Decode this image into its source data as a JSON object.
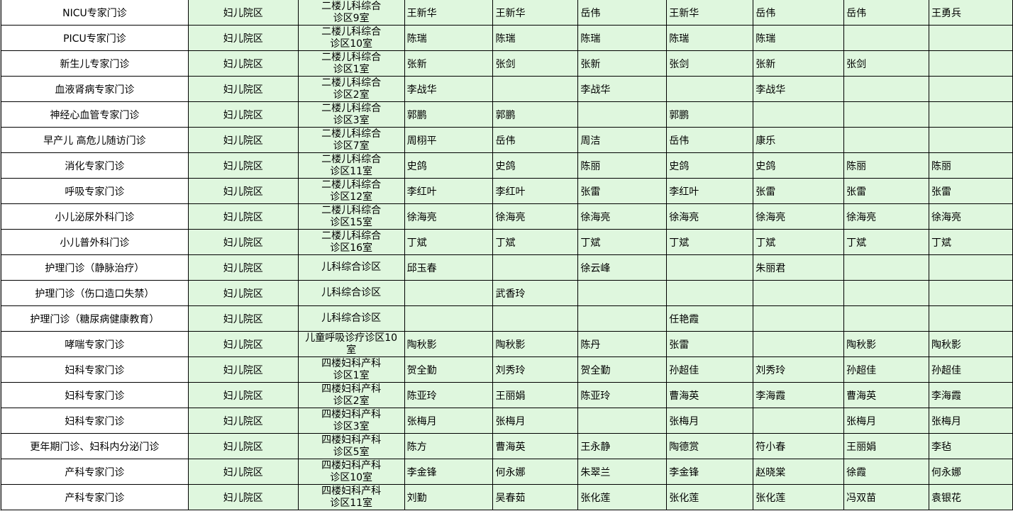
{
  "colors": {
    "cell_bg": "#dff7de",
    "first_col_bg": "#ffffff",
    "grid": "#000000"
  },
  "rows": [
    {
      "service": "NICU专家门诊",
      "campus": "妇儿院区",
      "room": "二楼儿科综合\n诊区9室",
      "doctors": [
        "王新华",
        "王新华",
        "岳伟",
        "王新华",
        "岳伟",
        "岳伟",
        "王勇兵"
      ]
    },
    {
      "service": "PICU专家门诊",
      "campus": "妇儿院区",
      "room": "二楼儿科综合\n诊区10室",
      "doctors": [
        "陈瑞",
        "陈瑞",
        "陈瑞",
        "陈瑞",
        "陈瑞",
        "",
        ""
      ]
    },
    {
      "service": "新生儿专家门诊",
      "campus": "妇儿院区",
      "room": "二楼儿科综合\n诊区1室",
      "doctors": [
        "张新",
        "张剑",
        "张新",
        "张剑",
        "张新",
        "张剑",
        ""
      ]
    },
    {
      "service": "血液肾病专家门诊",
      "campus": "妇儿院区",
      "room": "二楼儿科综合\n诊区2室",
      "doctors": [
        "李战华",
        "",
        "李战华",
        "",
        "李战华",
        "",
        ""
      ]
    },
    {
      "service": "神经心血管专家门诊",
      "campus": "妇儿院区",
      "room": "二楼儿科综合\n诊区3室",
      "doctors": [
        "郭鹏",
        "郭鹏",
        "",
        "郭鹏",
        "",
        "",
        ""
      ]
    },
    {
      "service": "早产儿 高危儿随访门诊",
      "campus": "妇儿院区",
      "room": "二楼儿科综合\n诊区7室",
      "doctors": [
        "周栩平",
        "岳伟",
        "周洁",
        "岳伟",
        "康乐",
        "",
        ""
      ]
    },
    {
      "service": "消化专家门诊",
      "campus": "妇儿院区",
      "room": "二楼儿科综合\n诊区11室",
      "doctors": [
        "史鸽",
        "史鸽",
        "陈丽",
        "史鸽",
        "史鸽",
        "陈丽",
        "陈丽"
      ]
    },
    {
      "service": "呼吸专家门诊",
      "campus": "妇儿院区",
      "room": "二楼儿科综合\n诊区12室",
      "doctors": [
        "李红叶",
        "李红叶",
        "张雷",
        "李红叶",
        "张雷",
        "张雷",
        "张雷"
      ]
    },
    {
      "service": "小儿泌尿外科门诊",
      "campus": "妇儿院区",
      "room": "二楼儿科综合\n诊区15室",
      "doctors": [
        "徐海亮",
        "徐海亮",
        "徐海亮",
        "徐海亮",
        "徐海亮",
        "徐海亮",
        "徐海亮"
      ]
    },
    {
      "service": "小儿普外科门诊",
      "campus": "妇儿院区",
      "room": "二楼儿科综合\n诊区16室",
      "doctors": [
        "丁斌",
        "丁斌",
        "丁斌",
        "丁斌",
        "丁斌",
        "丁斌",
        "丁斌"
      ]
    },
    {
      "service": "护理门诊（静脉治疗）",
      "campus": "妇儿院区",
      "room": "儿科综合诊区",
      "doctors": [
        "邱玉春",
        "",
        "徐云峰",
        "",
        "朱丽君",
        "",
        ""
      ]
    },
    {
      "service": "护理门诊（伤口造口失禁）",
      "campus": "妇儿院区",
      "room": "儿科综合诊区",
      "doctors": [
        "",
        "武香玲",
        "",
        "",
        "",
        "",
        ""
      ]
    },
    {
      "service": "护理门诊（糖尿病健康教育）",
      "campus": "妇儿院区",
      "room": "儿科综合诊区",
      "doctors": [
        "",
        "",
        "",
        "任艳霞",
        "",
        "",
        ""
      ]
    },
    {
      "service": "哮喘专家门诊",
      "campus": "妇儿院区",
      "room": "儿童呼吸诊疗诊区10\n室",
      "doctors": [
        "陶秋影",
        "陶秋影",
        "陈丹",
        "张雷",
        "",
        "陶秋影",
        "陶秋影"
      ]
    },
    {
      "service": "妇科专家门诊",
      "campus": "妇儿院区",
      "room": "四楼妇科产科\n诊区1室",
      "doctors": [
        "贺全勤",
        "刘秀玲",
        "贺全勤",
        "孙超佳",
        "刘秀玲",
        "孙超佳",
        "孙超佳"
      ]
    },
    {
      "service": "妇科专家门诊",
      "campus": "妇儿院区",
      "room": "四楼妇科产科\n诊区2室",
      "doctors": [
        "陈亚玲",
        "王丽娟",
        "陈亚玲",
        "曹海英",
        "李海霞",
        "曹海英",
        "李海霞"
      ]
    },
    {
      "service": "妇科专家门诊",
      "campus": "妇儿院区",
      "room": "四楼妇科产科\n诊区3室",
      "doctors": [
        "张梅月",
        "张梅月",
        "",
        "张梅月",
        "",
        "张梅月",
        "张梅月"
      ]
    },
    {
      "service": "更年期门诊、妇科内分泌门诊",
      "campus": "妇儿院区",
      "room": "四楼妇科产科\n诊区5室",
      "doctors": [
        "陈方",
        "曹海英",
        "王永静",
        "陶德赏",
        "符小春",
        "王丽娟",
        "李毡"
      ]
    },
    {
      "service": "产科专家门诊",
      "campus": "妇儿院区",
      "room": "四楼妇科产科\n诊区10室",
      "doctors": [
        "李金锋",
        "何永娜",
        "朱翠兰",
        "李金锋",
        "赵晓棠",
        "徐霞",
        "何永娜"
      ]
    },
    {
      "service": "产科专家门诊",
      "campus": "妇儿院区",
      "room": "四楼妇科产科\n诊区11室",
      "doctors": [
        "刘勤",
        "吴春茹",
        "张化莲",
        "张化莲",
        "张化莲",
        "冯双苗",
        "袁银花"
      ]
    }
  ]
}
